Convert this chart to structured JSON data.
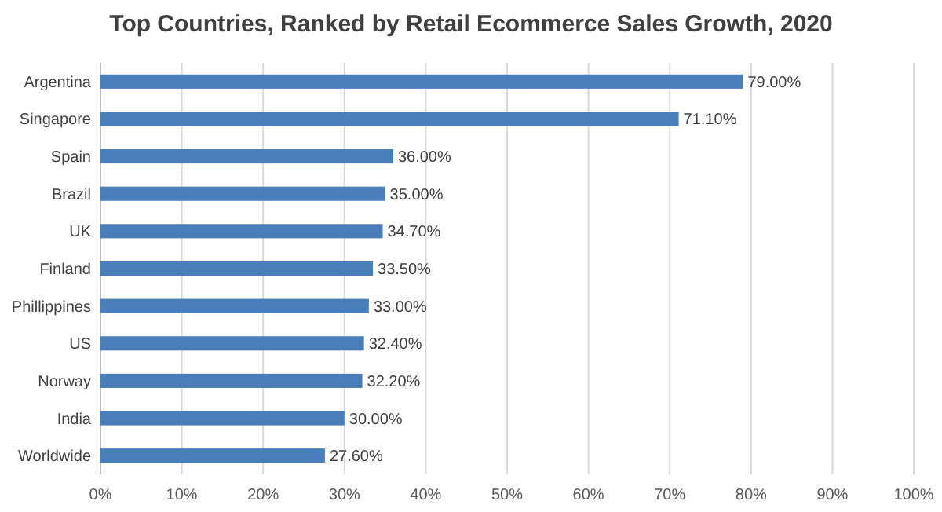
{
  "chart_data": {
    "type": "bar",
    "title": "Top Countries, Ranked by Retail Ecommerce Sales Growth, 2020",
    "orientation": "horizontal",
    "categories": [
      "Argentina",
      "Singapore",
      "Spain",
      "Brazil",
      "UK",
      "Finland",
      "Phillippines",
      "US",
      "Norway",
      "India",
      "Worldwide"
    ],
    "values": [
      79.0,
      71.1,
      36.0,
      35.0,
      34.7,
      33.5,
      33.0,
      32.4,
      32.2,
      30.0,
      27.6
    ],
    "value_labels": [
      "79.00%",
      "71.10%",
      "36.00%",
      "35.00%",
      "34.70%",
      "33.50%",
      "33.00%",
      "32.40%",
      "32.20%",
      "30.00%",
      "27.60%"
    ],
    "color": "#4a7ebb",
    "xlim": [
      0,
      100
    ],
    "xticks": [
      {
        "value": 0,
        "label": "0%"
      },
      {
        "value": 10,
        "label": "10%"
      },
      {
        "value": 20,
        "label": "20%"
      },
      {
        "value": 30,
        "label": "30%"
      },
      {
        "value": 40,
        "label": "40%"
      },
      {
        "value": 50,
        "label": "50%"
      },
      {
        "value": 60,
        "label": "60%"
      },
      {
        "value": 70,
        "label": "70%"
      },
      {
        "value": 80,
        "label": "80%"
      },
      {
        "value": 90,
        "label": "90%"
      },
      {
        "value": 100,
        "label": "100%"
      }
    ],
    "grid": "x"
  }
}
